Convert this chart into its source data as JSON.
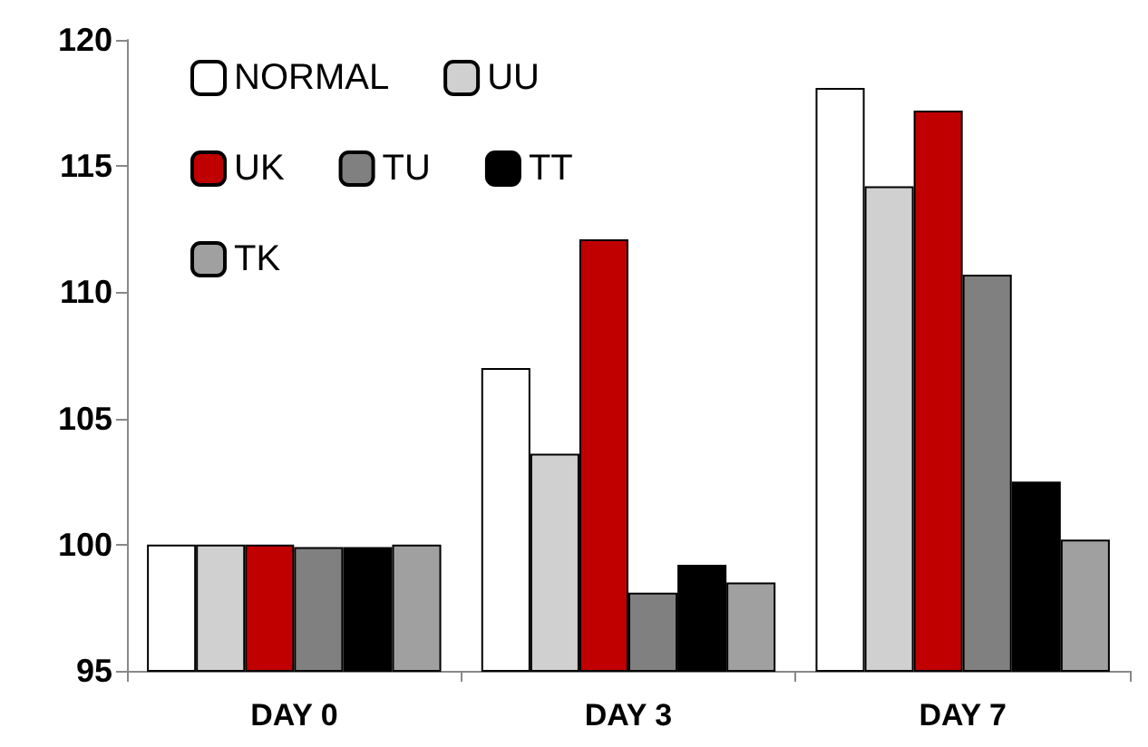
{
  "chart_data": {
    "type": "bar",
    "categories": [
      "DAY 0",
      "DAY 3",
      "DAY 7"
    ],
    "series": [
      {
        "name": "NORMAL",
        "color": "#ffffff",
        "values": [
          100,
          107,
          118.1
        ]
      },
      {
        "name": "UU",
        "color": "#d0d0d0",
        "values": [
          100,
          103.6,
          114.2
        ]
      },
      {
        "name": "UK",
        "color": "#c00000",
        "values": [
          100,
          112.1,
          117.2
        ]
      },
      {
        "name": "TU",
        "color": "#808080",
        "values": [
          99.9,
          98.1,
          110.7
        ]
      },
      {
        "name": "TT",
        "color": "#000000",
        "values": [
          99.9,
          99.2,
          102.5
        ]
      },
      {
        "name": "TK",
        "color": "#a0a0a0",
        "values": [
          100,
          98.5,
          100.2
        ]
      }
    ],
    "ylim": [
      95,
      120
    ],
    "yticks": [
      95,
      100,
      105,
      110,
      115,
      120
    ],
    "grid": false,
    "legend": "top left"
  }
}
